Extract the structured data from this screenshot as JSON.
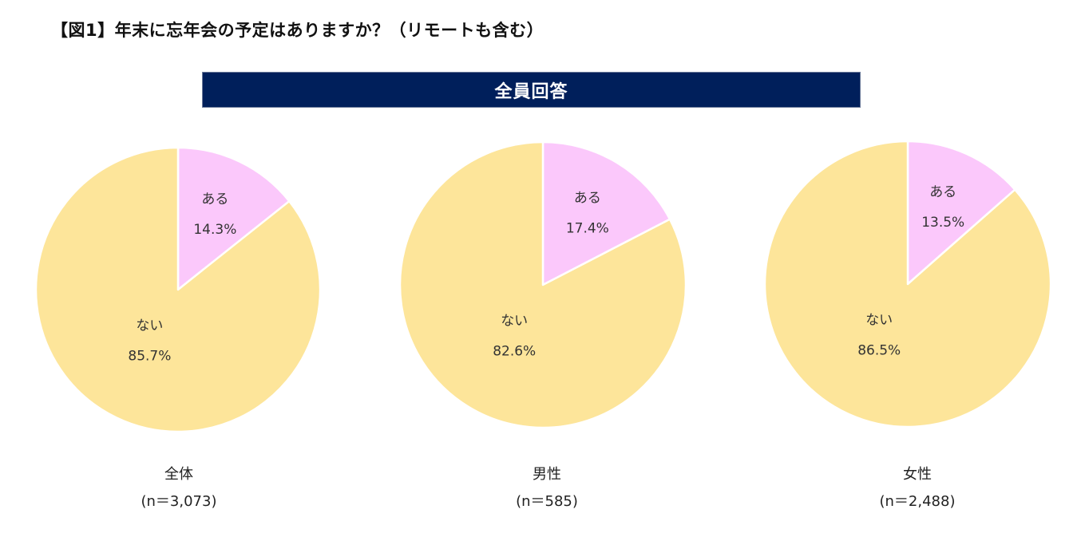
{
  "title": "【図1】年末に忘年会の予定はありますか？（リモートも含む）",
  "banner": "全員回答",
  "colors": {
    "yes": "#fbc8fb",
    "no": "#fde59a",
    "banner_bg": "#001f5b",
    "stroke": "#ffffff"
  },
  "chart_data": [
    {
      "type": "pie",
      "categories": [
        "ある",
        "ない"
      ],
      "values": [
        14.3,
        85.7
      ],
      "labels": [
        "14.3%",
        "85.7%"
      ],
      "group": "全体",
      "n": "(n＝3,073)"
    },
    {
      "type": "pie",
      "categories": [
        "ある",
        "ない"
      ],
      "values": [
        17.4,
        82.6
      ],
      "labels": [
        "17.4%",
        "82.6%"
      ],
      "group": "男性",
      "n": "(n＝585)"
    },
    {
      "type": "pie",
      "categories": [
        "ある",
        "ない"
      ],
      "values": [
        13.5,
        86.5
      ],
      "labels": [
        "13.5%",
        "86.5%"
      ],
      "group": "女性",
      "n": "(n＝2,488)"
    }
  ]
}
